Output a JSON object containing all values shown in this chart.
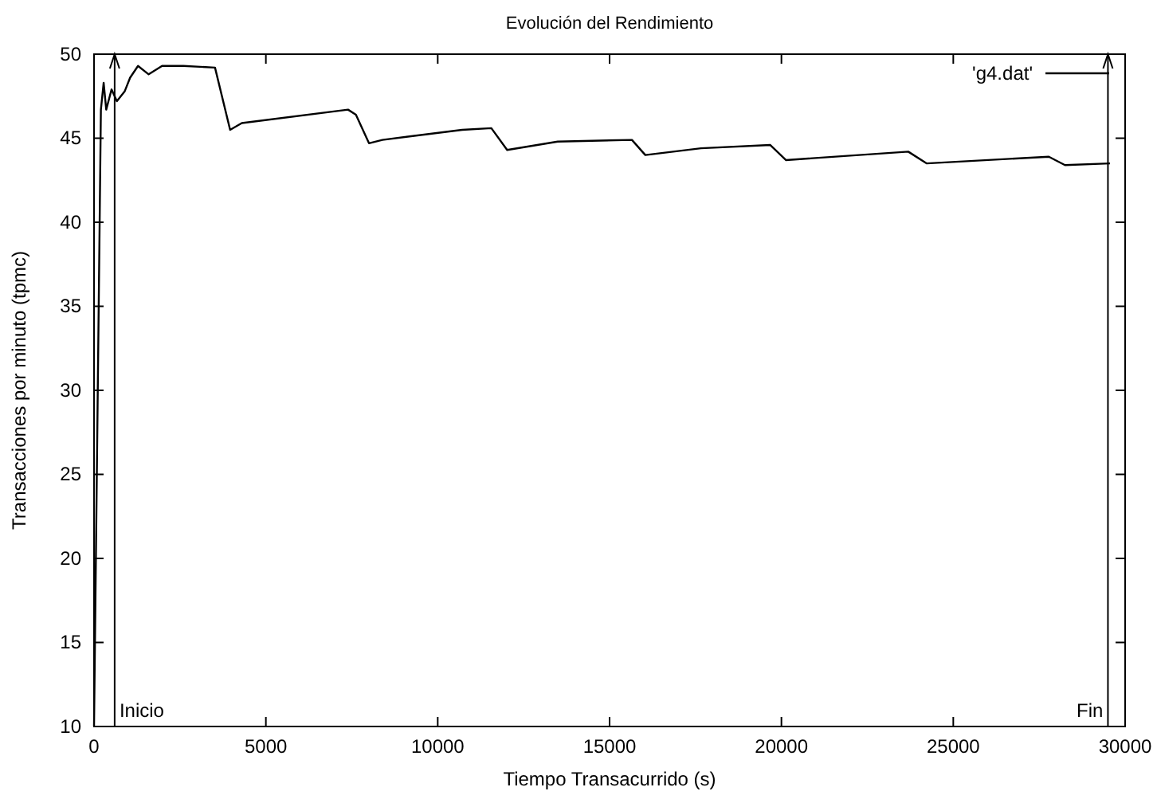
{
  "chart_data": {
    "type": "line",
    "title": "Evolución del Rendimiento",
    "xlabel": "Tiempo Transacurrido (s)",
    "ylabel": "Transacciones por minuto (tpmc)",
    "xlim": [
      0,
      30000
    ],
    "xticks": [
      0,
      5000,
      10000,
      15000,
      20000,
      25000,
      30000
    ],
    "ylim": [
      10,
      50
    ],
    "yticks": [
      10,
      15,
      20,
      25,
      30,
      35,
      40,
      45,
      50
    ],
    "grid": false,
    "legend": "top right",
    "marker": "none",
    "line_style": "solid",
    "series": [
      {
        "name": "'g4.dat'",
        "color": "#000000",
        "x": [
          0,
          200,
          280,
          355,
          510,
          665,
          895,
          1050,
          1280,
          1590,
          1980,
          2600,
          3520,
          3960,
          4300,
          7390,
          7620,
          8000,
          8390,
          10710,
          11560,
          12020,
          13490,
          15650,
          16040,
          17660,
          19670,
          19980,
          20130,
          23690,
          24230,
          27780,
          28250,
          29560
        ],
        "values": [
          10,
          46.7,
          48.3,
          46.7,
          47.9,
          47.2,
          47.8,
          48.6,
          49.3,
          48.8,
          49.3,
          49.3,
          49.2,
          45.5,
          45.9,
          46.7,
          46.4,
          44.7,
          44.9,
          45.5,
          45.6,
          44.3,
          44.8,
          44.9,
          44.0,
          44.4,
          44.6,
          44.0,
          43.7,
          44.2,
          43.5,
          43.9,
          43.4,
          43.5
        ]
      }
    ],
    "ref_lines": [
      {
        "axis": "x",
        "value": 600,
        "label": "Inicio"
      },
      {
        "axis": "x",
        "value": 29500,
        "label": "Fin"
      }
    ]
  }
}
